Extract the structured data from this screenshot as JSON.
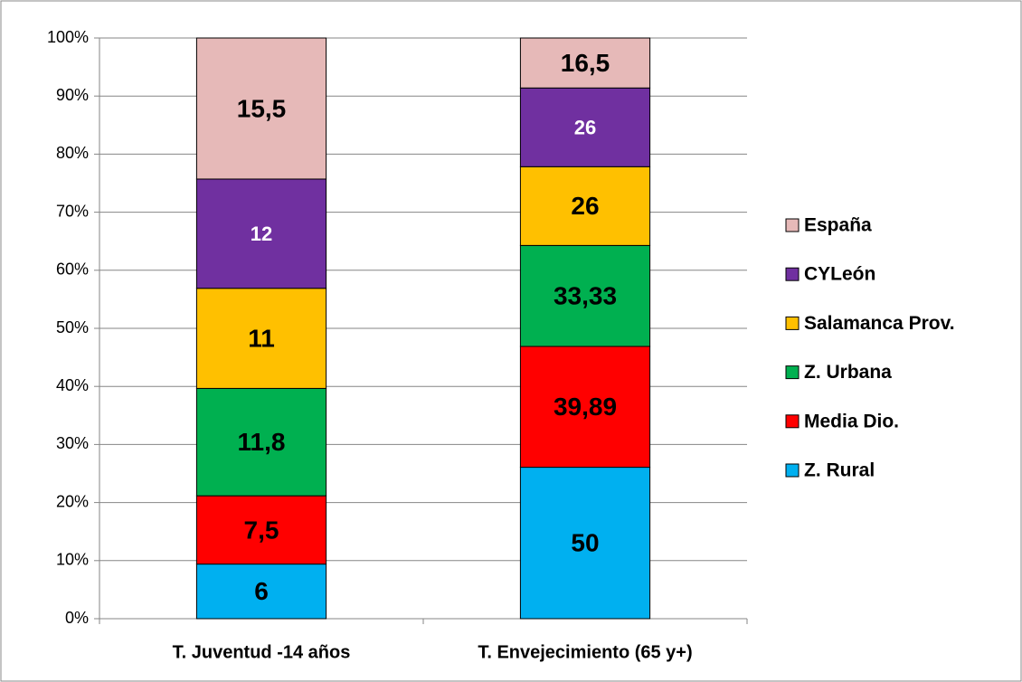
{
  "chart_data": {
    "type": "stacked_bar_100",
    "categories": [
      "T. Juventud -14 años",
      "T. Envejecimiento (65 y+)"
    ],
    "series": [
      {
        "name": "Z. Rural",
        "color": "#00b0f0",
        "label_color": "#000000",
        "values": [
          6,
          50
        ],
        "value_labels": [
          "6",
          "50"
        ]
      },
      {
        "name": "Media Dio.",
        "color": "#ff0000",
        "label_color": "#000000",
        "values": [
          7.5,
          39.89
        ],
        "value_labels": [
          "7,5",
          "39,89"
        ]
      },
      {
        "name": "Z. Urbana",
        "color": "#00b050",
        "label_color": "#000000",
        "values": [
          11.8,
          33.33
        ],
        "value_labels": [
          "11,8",
          "33,33"
        ]
      },
      {
        "name": "Salamanca Prov.",
        "color": "#ffc000",
        "label_color": "#000000",
        "values": [
          11,
          26
        ],
        "value_labels": [
          "11",
          "26"
        ]
      },
      {
        "name": "CYLeón",
        "color": "#7030a0",
        "label_color": "#ffffff",
        "values": [
          12,
          26
        ],
        "value_labels": [
          "12",
          "26"
        ]
      },
      {
        "name": "España",
        "color": "#e6b9b8",
        "label_color": "#000000",
        "values": [
          15.5,
          16.5
        ],
        "value_labels": [
          "15,5",
          "16,5"
        ]
      }
    ],
    "ylim": [
      0,
      100
    ],
    "yticks": [
      {
        "value": 0,
        "label": "0%"
      },
      {
        "value": 10,
        "label": "10%"
      },
      {
        "value": 20,
        "label": "20%"
      },
      {
        "value": 30,
        "label": "30%"
      },
      {
        "value": 40,
        "label": "40%"
      },
      {
        "value": 50,
        "label": "50%"
      },
      {
        "value": 60,
        "label": "60%"
      },
      {
        "value": 70,
        "label": "70%"
      },
      {
        "value": 80,
        "label": "80%"
      },
      {
        "value": 90,
        "label": "90%"
      },
      {
        "value": 100,
        "label": "100%"
      }
    ],
    "grid": true,
    "legend": "right"
  }
}
